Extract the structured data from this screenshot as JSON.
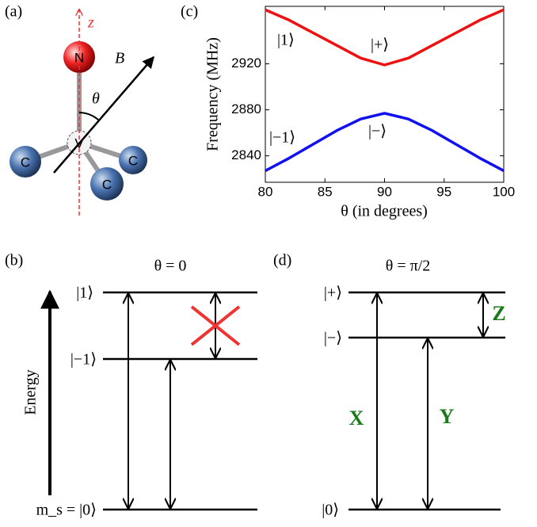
{
  "chart_data": {
    "type": "line",
    "ylabel": "Frequency (MHz)",
    "xlabel": "θ (in degrees)",
    "x": [
      80,
      82,
      84,
      86,
      88,
      90,
      92,
      94,
      96,
      98,
      100
    ],
    "series": [
      {
        "color": "#ee1111",
        "values": [
          2967,
          2958,
          2947,
          2936,
          2925,
          2919,
          2925,
          2936,
          2947,
          2958,
          2967
        ]
      },
      {
        "color": "#1111ee",
        "values": [
          2827,
          2838,
          2850,
          2862,
          2872,
          2877,
          2872,
          2862,
          2850,
          2838,
          2827
        ]
      }
    ],
    "xlim": [
      80,
      100
    ],
    "xticks": [
      80,
      85,
      90,
      95,
      100
    ],
    "ylim": [
      2817,
      2970
    ],
    "yticks": [
      2840,
      2880,
      2920
    ],
    "annotations": [
      "|1⟩",
      "|+⟩",
      "|−1⟩",
      "|−⟩"
    ]
  },
  "panels": {
    "a": {
      "label": "(a)",
      "atoms": [
        "N",
        "V",
        "C",
        "C",
        "C"
      ],
      "axis": "z",
      "field": "B⃗",
      "angle": "θ"
    },
    "b": {
      "label": "(b)",
      "title": "θ = 0",
      "levels": [
        "|1⟩",
        "|−1⟩",
        "m_s = |0⟩"
      ],
      "energy": "Energy"
    },
    "c": {
      "label": "(c)"
    },
    "d": {
      "label": "(d)",
      "title": "θ = π/2",
      "levels": [
        "|+⟩",
        "|−⟩",
        "|0⟩"
      ],
      "transitions": [
        "X",
        "Y",
        "Z"
      ]
    }
  }
}
